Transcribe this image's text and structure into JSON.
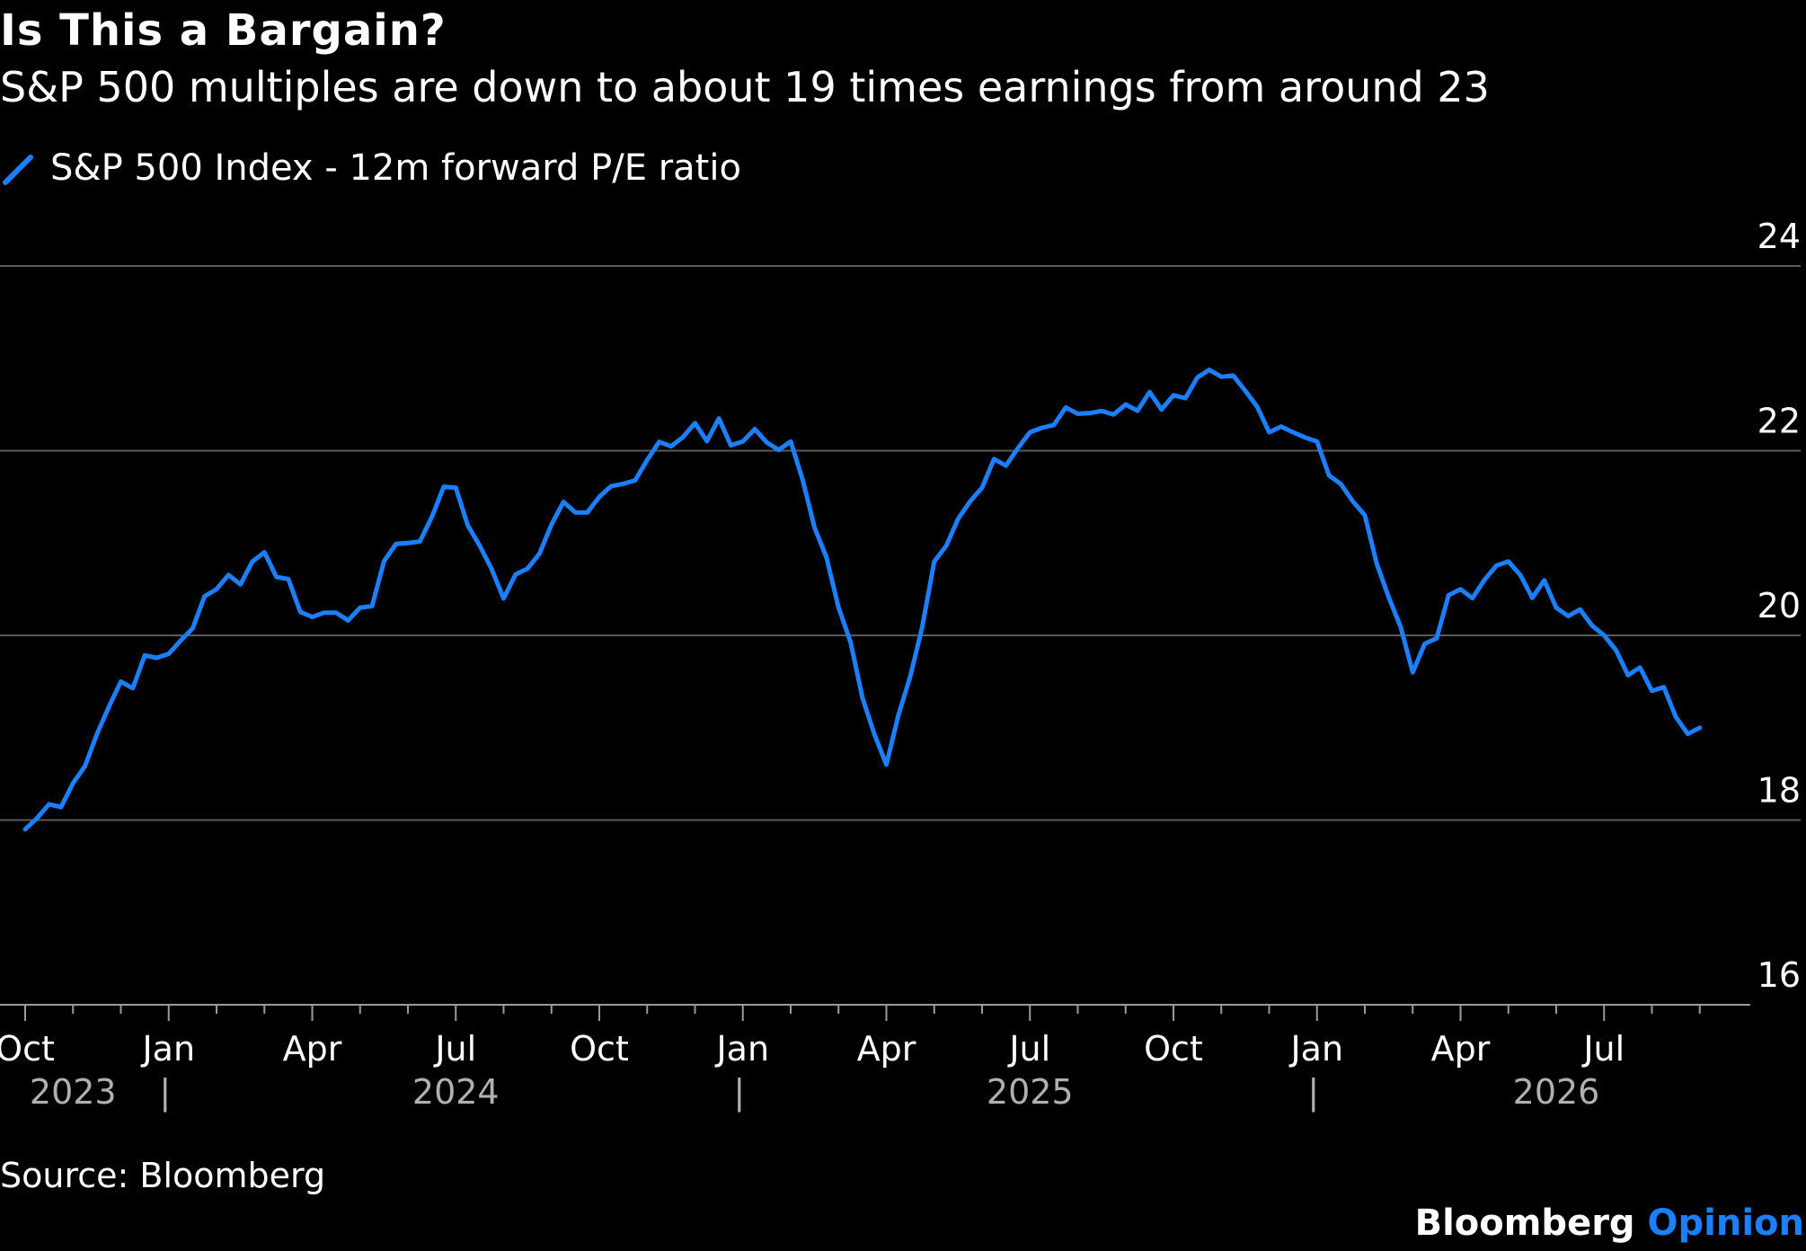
{
  "title": "Is This a Bargain?",
  "subtitle": "S&P 500 multiples are down to about 19 times earnings from around 23",
  "source": "Source: Bloomberg",
  "brand": {
    "name": "Bloomberg",
    "suffix": "Opinion"
  },
  "colors": {
    "series": "#1c7fff",
    "grid": "#5a5a5a",
    "background": "#000000"
  },
  "chart_data": {
    "type": "line",
    "series": [
      {
        "name": "S&P 500 Index - 12m forward P/E ratio"
      }
    ],
    "ylim": [
      16,
      24
    ],
    "yticks": [
      24,
      22,
      20,
      18,
      16
    ],
    "y_axis_side": "right",
    "grid": true,
    "month_labels": [
      "Oct",
      "Jan",
      "Apr",
      "Jul",
      "Oct",
      "Jan",
      "Apr",
      "Jul",
      "Oct",
      "Jan",
      "Apr",
      "Jul"
    ],
    "year_labels": [
      "2023",
      "2024",
      "2025",
      "2026"
    ],
    "year_separator": "|",
    "x": [
      "2023-10",
      "2023-11",
      "2023-12",
      "2024-01",
      "2024-02",
      "2024-03",
      "2024-04",
      "2024-05",
      "2024-06",
      "2024-07",
      "2024-08",
      "2024-09",
      "2024-10",
      "2024-11",
      "2024-12",
      "2025-01",
      "2025-02",
      "2025-03",
      "2025-04",
      "2025-05",
      "2025-06",
      "2025-07",
      "2025-08",
      "2025-09",
      "2025-10",
      "2025-11",
      "2025-12",
      "2026-01",
      "2026-02",
      "2026-03",
      "2026-04",
      "2026-05",
      "2026-06",
      "2026-07",
      "2026-08",
      "2026-09"
    ],
    "values": [
      17.9,
      18.4,
      19.5,
      19.8,
      20.5,
      20.9,
      20.2,
      20.3,
      21.0,
      21.6,
      20.4,
      21.2,
      21.5,
      21.9,
      22.3,
      22.1,
      22.1,
      20.3,
      18.6,
      20.8,
      21.6,
      22.2,
      22.4,
      22.5,
      22.6,
      22.8,
      22.2,
      22.1,
      21.3,
      19.6,
      20.5,
      20.8,
      20.3,
      20.0,
      19.4,
      19.0
    ]
  }
}
